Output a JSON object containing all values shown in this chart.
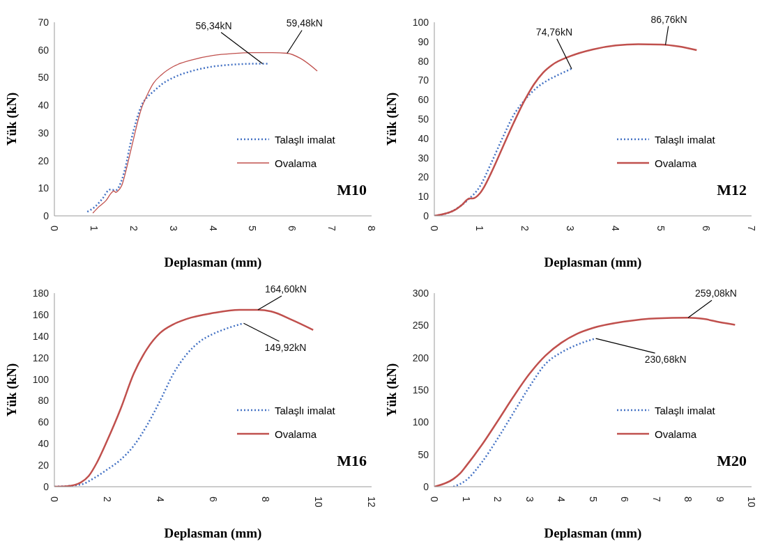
{
  "chart_data": [
    {
      "type": "line",
      "title": "M10",
      "xlabel": "Deplasman (mm)",
      "ylabel": "Yük (kN)",
      "xlim": [
        0,
        8
      ],
      "xticks": [
        0,
        1,
        2,
        3,
        4,
        5,
        6,
        7,
        8
      ],
      "ylim": [
        0,
        70
      ],
      "yticks": [
        0,
        10,
        20,
        30,
        40,
        50,
        60,
        70
      ],
      "legend": "right",
      "marker": "none",
      "grid": false,
      "series": [
        {
          "name": "Talaşlı imalat",
          "color": "#4472c4",
          "line_style": "dotted",
          "x": [
            0.83,
            1.0,
            1.2,
            1.4,
            1.55,
            1.7,
            1.8,
            1.9,
            2.0,
            2.1,
            2.2,
            2.35,
            2.5,
            2.75,
            3.0,
            3.5,
            4.0,
            4.5,
            5.0,
            5.25,
            5.4
          ],
          "values": [
            1.5,
            3,
            6,
            9.5,
            9.3,
            13,
            18,
            25,
            31,
            36,
            40,
            43,
            45,
            48,
            50,
            52.5,
            54,
            54.7,
            55,
            55,
            55
          ]
        },
        {
          "name": "Ovalama",
          "color": "#c0504d",
          "line_style": "solid",
          "x": [
            0.97,
            1.1,
            1.3,
            1.45,
            1.5,
            1.55,
            1.6,
            1.7,
            1.8,
            1.9,
            2.0,
            2.1,
            2.2,
            2.35,
            2.5,
            2.7,
            3.0,
            3.5,
            4.0,
            4.5,
            5.0,
            5.5,
            5.87,
            6.2,
            6.63
          ],
          "values": [
            1,
            3,
            5.5,
            8.5,
            9,
            8.5,
            9,
            11,
            16,
            22,
            28,
            34,
            39,
            44,
            48,
            51,
            54,
            56.5,
            58,
            58.7,
            59,
            59,
            58.8,
            57,
            52.4
          ]
        }
      ],
      "annotations": [
        {
          "text": "56,34kN",
          "x": 5.25,
          "y": 55
        },
        {
          "text": "59,48kN",
          "x": 5.87,
          "y": 58.8
        }
      ]
    },
    {
      "type": "line",
      "title": "M12",
      "xlabel": "Deplasman (mm)",
      "ylabel": "Yük (kN)",
      "xlim": [
        0,
        7
      ],
      "xticks": [
        0,
        1,
        2,
        3,
        4,
        5,
        6,
        7
      ],
      "ylim": [
        0,
        100
      ],
      "yticks": [
        0,
        10,
        20,
        30,
        40,
        50,
        60,
        70,
        80,
        90,
        100
      ],
      "legend": "right",
      "marker": "none",
      "grid": false,
      "series": [
        {
          "name": "Talaşlı imalat",
          "color": "#4472c4",
          "line_style": "dotted",
          "x": [
            0,
            0.4,
            0.75,
            1.0,
            1.25,
            1.5,
            1.75,
            2.0,
            2.25,
            2.5,
            2.75,
            3.03
          ],
          "values": [
            0,
            2.5,
            8.5,
            15,
            27,
            40,
            52,
            60,
            66,
            70,
            73,
            76
          ]
        },
        {
          "name": "Ovalama",
          "color": "#c0504d",
          "line_style": "solid",
          "x": [
            0,
            0.45,
            0.6,
            0.78,
            0.85,
            1.0,
            1.1,
            1.25,
            1.5,
            1.75,
            2.0,
            2.2,
            2.4,
            2.6,
            3.0,
            3.5,
            4.0,
            4.5,
            5.0,
            5.4,
            5.79
          ],
          "values": [
            0,
            3,
            5.5,
            9,
            9,
            11.5,
            15,
            22,
            35,
            48,
            60,
            68,
            74,
            78,
            82.5,
            86,
            88,
            88.7,
            88.5,
            87.5,
            85.6
          ]
        }
      ],
      "annotations": [
        {
          "text": "74,76kN",
          "x": 3.03,
          "y": 76
        },
        {
          "text": "86,76kN",
          "x": 5.1,
          "y": 88.3
        }
      ]
    },
    {
      "type": "line",
      "title": "M16",
      "xlabel": "Deplasman (mm)",
      "ylabel": "Yük (kN)",
      "xlim": [
        0,
        12
      ],
      "xticks": [
        0,
        2,
        4,
        6,
        8,
        10,
        12
      ],
      "ylim": [
        0,
        180
      ],
      "yticks": [
        0,
        20,
        40,
        60,
        80,
        100,
        120,
        140,
        160,
        180
      ],
      "legend": "right",
      "marker": "none",
      "grid": false,
      "series": [
        {
          "name": "Talaşlı imalat",
          "color": "#4472c4",
          "line_style": "dotted",
          "x": [
            0,
            1.0,
            1.5,
            2.0,
            2.5,
            3.0,
            3.5,
            4.0,
            4.5,
            5.0,
            5.5,
            6.0,
            6.5,
            7.16
          ],
          "values": [
            0,
            2,
            8,
            16,
            25,
            38,
            57,
            80,
            105,
            123,
            135,
            142,
            147,
            152
          ]
        },
        {
          "name": "Ovalama",
          "color": "#c0504d",
          "line_style": "solid",
          "x": [
            0,
            0.5,
            1.0,
            1.3,
            1.6,
            2.0,
            2.5,
            3.0,
            3.5,
            4.0,
            4.5,
            5.0,
            6.0,
            7.0,
            7.7,
            8.2,
            9.0,
            9.79
          ],
          "values": [
            0,
            0.5,
            4,
            10,
            22,
            43,
            72,
            105,
            128,
            143,
            151,
            156,
            161.5,
            164.5,
            164.5,
            163,
            155,
            145.8
          ]
        }
      ],
      "annotations": [
        {
          "text": "149,92kN",
          "x": 7.16,
          "y": 152
        },
        {
          "text": "164,60kN",
          "x": 7.7,
          "y": 164.5
        }
      ]
    },
    {
      "type": "line",
      "title": "M20",
      "xlabel": "Deplasman (mm)",
      "ylabel": "Yük (kN)",
      "xlim": [
        0,
        10
      ],
      "xticks": [
        0,
        1,
        2,
        3,
        4,
        5,
        6,
        7,
        8,
        9,
        10
      ],
      "ylim": [
        0,
        300
      ],
      "yticks": [
        0,
        50,
        100,
        150,
        200,
        250,
        300
      ],
      "legend": "right",
      "marker": "none",
      "grid": false,
      "series": [
        {
          "name": "Talaşlı imalat",
          "color": "#4472c4",
          "line_style": "dotted",
          "x": [
            0.6,
            1.0,
            1.5,
            2.0,
            2.5,
            3.0,
            3.5,
            4.0,
            4.5,
            5.09
          ],
          "values": [
            0,
            10,
            38,
            75,
            115,
            155,
            190,
            208,
            220,
            230
          ]
        },
        {
          "name": "Ovalama",
          "color": "#c0504d",
          "line_style": "solid",
          "x": [
            0,
            0.6,
            0.8,
            1.0,
            1.5,
            2.0,
            2.5,
            3.0,
            3.5,
            4.0,
            4.5,
            5.0,
            6.0,
            7.0,
            8.0,
            8.5,
            9.0,
            9.48
          ],
          "values": [
            0,
            12,
            20,
            32,
            65,
            102,
            140,
            175,
            203,
            223,
            237,
            246,
            256,
            261,
            262,
            260,
            255,
            251
          ]
        }
      ],
      "annotations": [
        {
          "text": "259,08kN",
          "x": 8.0,
          "y": 262
        },
        {
          "text": "230,68kN",
          "x": 5.09,
          "y": 229.8
        }
      ]
    }
  ]
}
